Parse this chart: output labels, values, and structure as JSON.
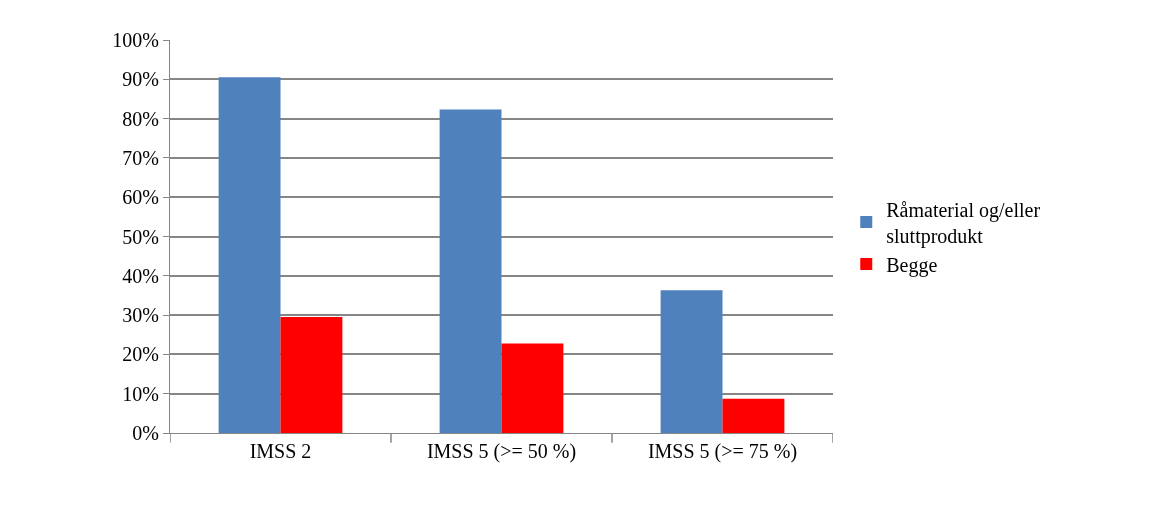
{
  "chart_data": {
    "type": "bar",
    "categories": [
      "IMSS 2",
      "IMSS 5 (>= 50 %)",
      "IMSS 5 (>= 75 %)"
    ],
    "series": [
      {
        "name": "Råmaterial og/eller sluttprodukt",
        "color": "#4f81bd",
        "values": [
          90.5,
          82.3,
          36.3
        ]
      },
      {
        "name": "Begge",
        "color": "#ff0000",
        "values": [
          29.5,
          22.8,
          8.7
        ]
      }
    ],
    "ylim": [
      0,
      100
    ],
    "yticks": [
      {
        "value": 0,
        "label": "0%"
      },
      {
        "value": 10,
        "label": "10%"
      },
      {
        "value": 20,
        "label": "20%"
      },
      {
        "value": 30,
        "label": "30%"
      },
      {
        "value": 40,
        "label": "40%"
      },
      {
        "value": 50,
        "label": "50%"
      },
      {
        "value": 60,
        "label": "60%"
      },
      {
        "value": 70,
        "label": "70%"
      },
      {
        "value": 80,
        "label": "80%"
      },
      {
        "value": 90,
        "label": "90%"
      },
      {
        "value": 100,
        "label": "100%"
      }
    ],
    "grid": "y",
    "legend": "right"
  }
}
